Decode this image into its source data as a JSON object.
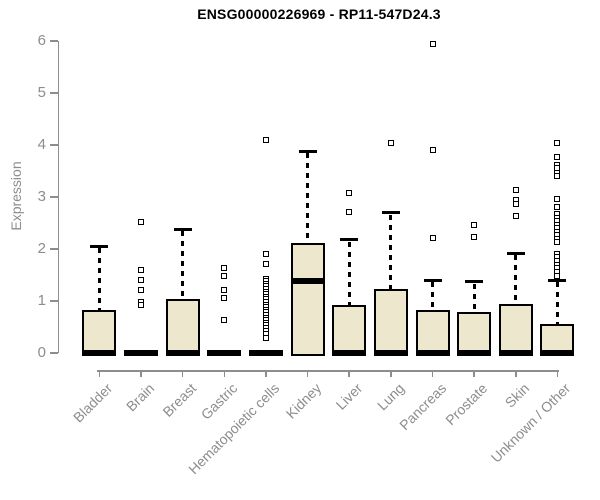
{
  "chart_data": {
    "type": "boxplot",
    "title": "ENSG00000226969 - RP11-547D24.3",
    "ylabel": "Expression",
    "xlabel": "",
    "ylim": [
      0,
      6
    ],
    "yticks": [
      0,
      1,
      2,
      3,
      4,
      5,
      6
    ],
    "grid": false,
    "legend": "none",
    "colors": {
      "box_fill": "#ece7cd",
      "box_border": "#000000",
      "median": "#000000",
      "axis": "#8d8d8d",
      "tick_text": "#8d8d8d",
      "title_text": "#000000",
      "background": "#ffffff"
    },
    "series": [
      {
        "category": "Bladder",
        "min": 0,
        "q1": 0,
        "median": 0,
        "q3": 0.82,
        "whisker_high": 2.05,
        "outliers": []
      },
      {
        "category": "Brain",
        "min": 0,
        "q1": 0,
        "median": 0,
        "q3": 0,
        "whisker_high": 0,
        "outliers": [
          2.52,
          1.6,
          1.4,
          1.22,
          0.99,
          0.92
        ]
      },
      {
        "category": "Breast",
        "min": 0,
        "q1": 0,
        "median": 0,
        "q3": 1.03,
        "whisker_high": 2.38,
        "outliers": []
      },
      {
        "category": "Gastric",
        "min": 0,
        "q1": 0,
        "median": 0,
        "q3": 0,
        "whisker_high": 0,
        "outliers": [
          1.63,
          1.49,
          1.21,
          1.06,
          0.63
        ]
      },
      {
        "category": "Hematopoietic cells",
        "min": 0,
        "q1": 0,
        "median": 0,
        "q3": 0,
        "whisker_high": 0,
        "outliers": [
          4.1,
          1.91,
          1.72,
          1.43,
          1.38,
          1.33,
          1.28,
          1.23,
          1.18,
          1.13,
          1.08,
          1.03,
          0.98,
          0.93,
          0.88,
          0.83,
          0.78,
          0.73,
          0.68,
          0.63,
          0.58,
          0.53,
          0.48,
          0.42,
          0.37,
          0.28
        ]
      },
      {
        "category": "Kidney",
        "min": 0,
        "q1": 0,
        "median": 1.38,
        "q3": 2.12,
        "whisker_high": 3.88,
        "outliers": []
      },
      {
        "category": "Liver",
        "min": 0,
        "q1": 0,
        "median": 0,
        "q3": 0.92,
        "whisker_high": 2.18,
        "outliers": [
          3.07,
          2.72
        ]
      },
      {
        "category": "Lung",
        "min": 0,
        "q1": 0,
        "median": 0,
        "q3": 1.24,
        "whisker_high": 2.7,
        "outliers": [
          4.03
        ]
      },
      {
        "category": "Pancreas",
        "min": 0,
        "q1": 0,
        "median": 0,
        "q3": 0.83,
        "whisker_high": 1.4,
        "outliers": [
          5.95,
          3.9,
          2.22
        ]
      },
      {
        "category": "Prostate",
        "min": 0,
        "q1": 0,
        "median": 0,
        "q3": 0.79,
        "whisker_high": 1.37,
        "outliers": [
          2.46,
          2.23
        ]
      },
      {
        "category": "Skin",
        "min": 0,
        "q1": 0,
        "median": 0,
        "q3": 0.95,
        "whisker_high": 1.92,
        "outliers": [
          3.14,
          2.95,
          2.87,
          2.64
        ]
      },
      {
        "category": "Unknown / Other",
        "min": 0,
        "q1": 0,
        "median": 0,
        "q3": 0.55,
        "whisker_high": 1.4,
        "outliers": [
          4.03,
          3.77,
          3.62,
          3.55,
          3.47,
          3.4,
          2.97,
          2.81,
          2.67,
          2.6,
          2.53,
          2.46,
          2.4,
          2.33,
          2.27,
          2.2,
          2.13,
          1.91,
          1.84,
          1.77,
          1.7,
          1.63,
          1.56,
          1.49
        ]
      }
    ]
  }
}
